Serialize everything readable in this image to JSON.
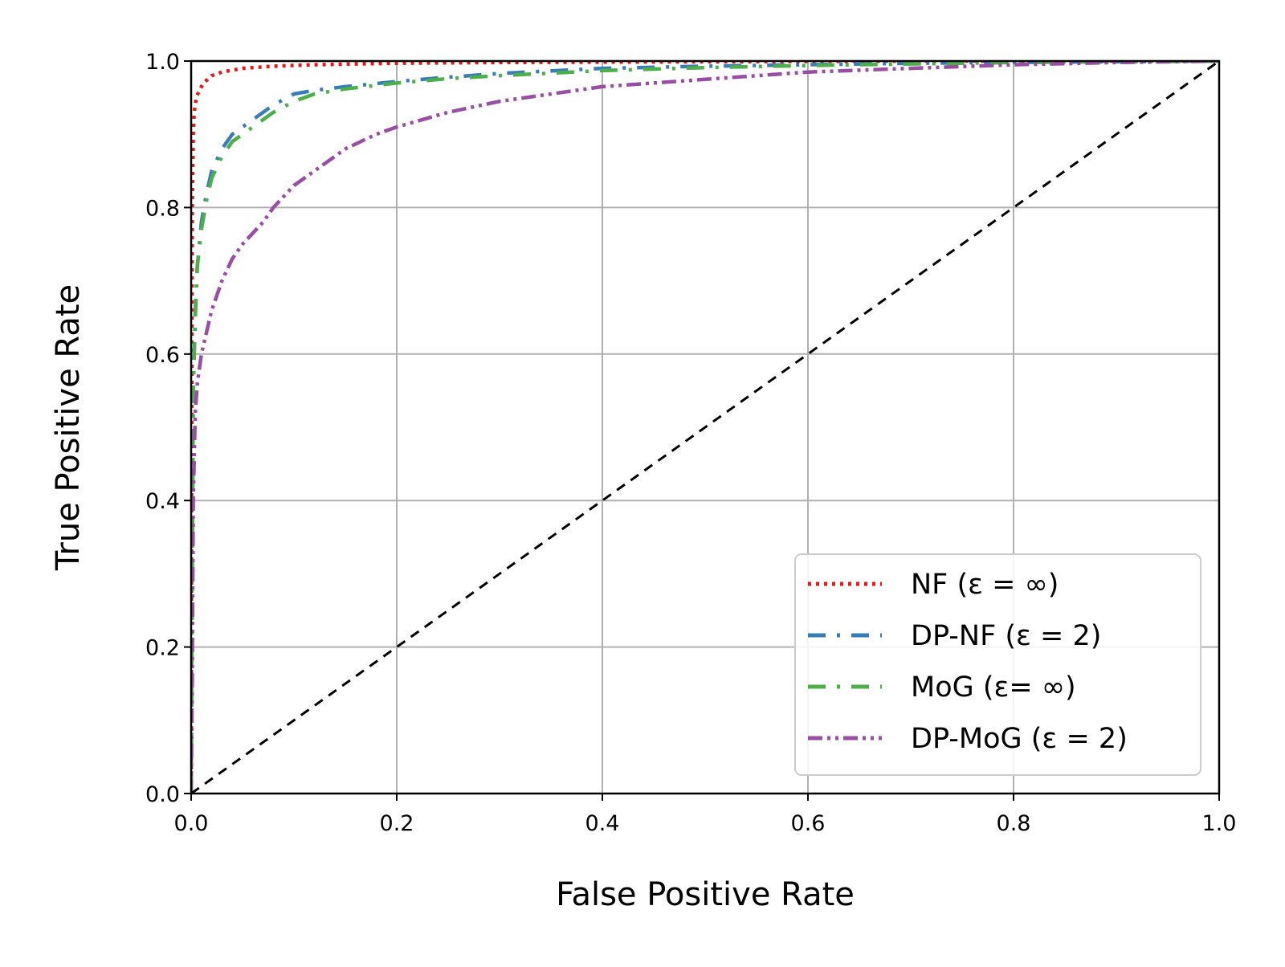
{
  "chart_data": {
    "type": "line",
    "title": "",
    "xlabel": "False Positive Rate",
    "ylabel": "True Positive Rate",
    "xlim": [
      0.0,
      1.0
    ],
    "ylim": [
      0.0,
      1.0
    ],
    "xticks": [
      "0.0",
      "0.2",
      "0.4",
      "0.6",
      "0.8",
      "1.0"
    ],
    "yticks": [
      "0.0",
      "0.2",
      "0.4",
      "0.6",
      "0.8",
      "1.0"
    ],
    "grid": true,
    "legend_position": "lower right",
    "series": [
      {
        "name": "NF (ε = ∞)",
        "color": "#e41a1c",
        "style": "dotted",
        "x": [
          0.0,
          0.0005,
          0.001,
          0.002,
          0.003,
          0.005,
          0.008,
          0.012,
          0.02,
          0.03,
          0.05,
          0.08,
          0.12,
          0.2,
          0.3,
          0.5,
          0.7,
          1.0
        ],
        "y": [
          0.0,
          0.5,
          0.8,
          0.9,
          0.93,
          0.95,
          0.96,
          0.97,
          0.98,
          0.985,
          0.99,
          0.993,
          0.995,
          0.997,
          0.998,
          0.999,
          1.0,
          1.0
        ]
      },
      {
        "name": "DP-NF (ε = 2)",
        "color": "#377eb8",
        "style": "dash-dot",
        "x": [
          0.0,
          0.001,
          0.002,
          0.004,
          0.006,
          0.01,
          0.015,
          0.02,
          0.03,
          0.04,
          0.06,
          0.08,
          0.1,
          0.12,
          0.15,
          0.2,
          0.25,
          0.3,
          0.4,
          0.5,
          0.6,
          0.7,
          0.8,
          1.0
        ],
        "y": [
          0.0,
          0.3,
          0.55,
          0.65,
          0.72,
          0.78,
          0.82,
          0.85,
          0.88,
          0.9,
          0.92,
          0.94,
          0.955,
          0.96,
          0.965,
          0.972,
          0.978,
          0.983,
          0.99,
          0.993,
          0.995,
          0.997,
          0.998,
          1.0
        ]
      },
      {
        "name": "MoG (ε= ∞)",
        "color": "#4daf4a",
        "style": "dash-dot",
        "x": [
          0.0,
          0.001,
          0.002,
          0.004,
          0.006,
          0.01,
          0.015,
          0.02,
          0.03,
          0.04,
          0.06,
          0.08,
          0.1,
          0.12,
          0.15,
          0.2,
          0.25,
          0.3,
          0.4,
          0.5,
          0.6,
          0.7,
          0.8,
          1.0
        ],
        "y": [
          0.0,
          0.3,
          0.55,
          0.66,
          0.72,
          0.77,
          0.81,
          0.84,
          0.87,
          0.89,
          0.91,
          0.93,
          0.945,
          0.955,
          0.962,
          0.97,
          0.976,
          0.98,
          0.987,
          0.991,
          0.994,
          0.996,
          0.998,
          1.0
        ]
      },
      {
        "name": "DP-MoG (ε = 2)",
        "color": "#984ea3",
        "style": "dash-dot-dot",
        "x": [
          0.0,
          0.001,
          0.002,
          0.004,
          0.006,
          0.01,
          0.015,
          0.02,
          0.03,
          0.04,
          0.05,
          0.07,
          0.08,
          0.1,
          0.12,
          0.15,
          0.18,
          0.2,
          0.25,
          0.3,
          0.35,
          0.4,
          0.5,
          0.6,
          0.7,
          0.8,
          0.9,
          1.0
        ],
        "y": [
          0.0,
          0.15,
          0.4,
          0.52,
          0.56,
          0.6,
          0.63,
          0.66,
          0.7,
          0.73,
          0.75,
          0.78,
          0.8,
          0.83,
          0.85,
          0.88,
          0.9,
          0.91,
          0.93,
          0.945,
          0.955,
          0.965,
          0.975,
          0.985,
          0.99,
          0.995,
          0.998,
          1.0
        ]
      },
      {
        "name": "",
        "color": "#000000",
        "style": "dashed",
        "x": [
          0.0,
          1.0
        ],
        "y": [
          0.0,
          1.0
        ]
      }
    ]
  }
}
